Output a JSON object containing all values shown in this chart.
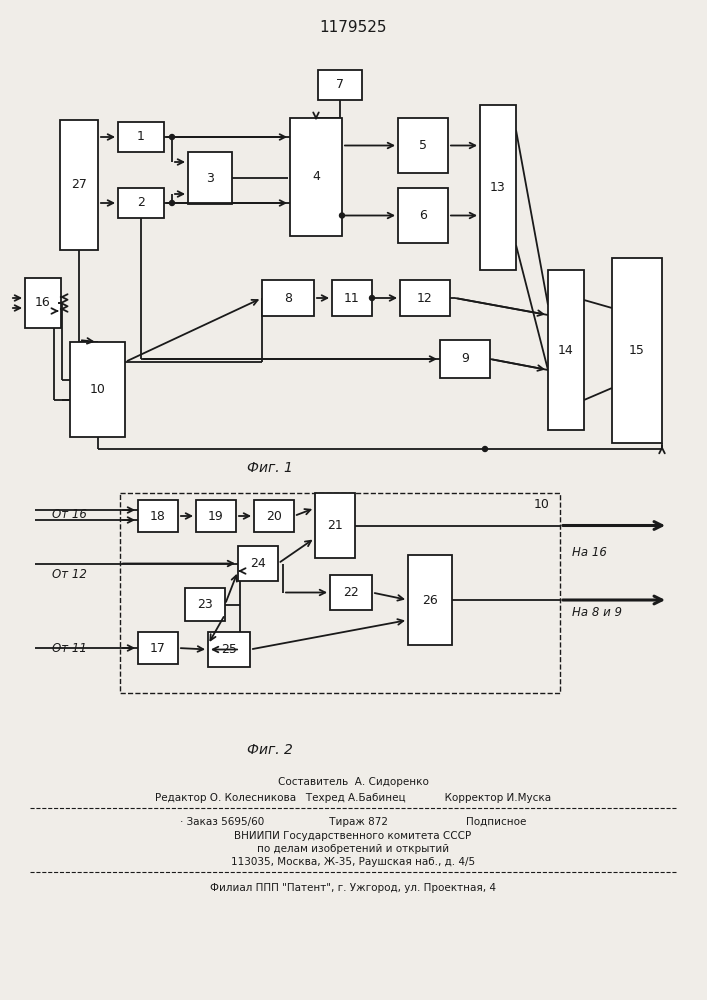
{
  "title": "1179525",
  "fig1_label": "Фиг. 1",
  "fig2_label": "Фиг. 2",
  "bg_color": "#f0ede8",
  "box_color": "#ffffff",
  "lc": "#1a1a1a"
}
